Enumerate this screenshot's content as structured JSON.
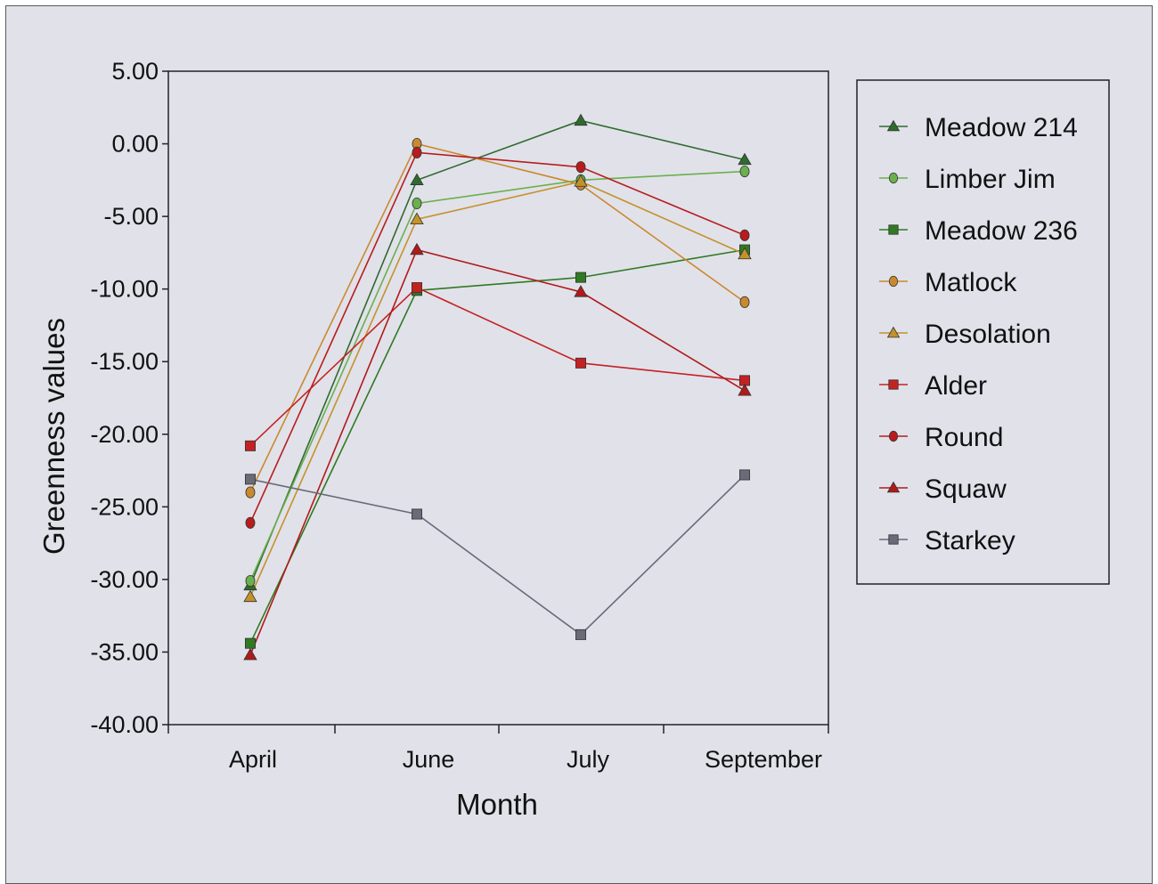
{
  "chart_data": {
    "type": "line",
    "title": "",
    "xlabel": "Month",
    "ylabel": "Greenness values",
    "categories": [
      "April",
      "June",
      "July",
      "September"
    ],
    "ylim": [
      -40,
      5
    ],
    "yticks": [
      5,
      0,
      -5,
      -10,
      -15,
      -20,
      -25,
      -30,
      -35,
      -40
    ],
    "ytick_labels": [
      "5.00",
      "0.00",
      "-5.00",
      "-10.00",
      "-15.00",
      "-20.00",
      "-25.00",
      "-30.00",
      "-35.00",
      "-40.00"
    ],
    "grid": false,
    "legend_position": "right",
    "series": [
      {
        "name": "Meadow 214",
        "color": "#2e6b2e",
        "marker": "triangle",
        "values": [
          -30.4,
          -2.5,
          1.6,
          -1.1
        ]
      },
      {
        "name": "Limber Jim",
        "color": "#6ab04c",
        "marker": "circle",
        "values": [
          -30.1,
          -4.1,
          -2.5,
          -1.9
        ]
      },
      {
        "name": "Meadow 236",
        "color": "#2f7a22",
        "marker": "square",
        "values": [
          -34.4,
          -10.1,
          -9.2,
          -7.3
        ]
      },
      {
        "name": "Matlock",
        "color": "#c98a2e",
        "marker": "circle",
        "values": [
          -24.0,
          0.0,
          -2.8,
          -10.9
        ]
      },
      {
        "name": "Desolation",
        "color": "#c4922a",
        "marker": "triangle",
        "values": [
          -31.2,
          -5.2,
          -2.6,
          -7.6
        ]
      },
      {
        "name": "Alder",
        "color": "#c42222",
        "marker": "square",
        "values": [
          -20.8,
          -9.9,
          -15.1,
          -16.3
        ]
      },
      {
        "name": "Round",
        "color": "#b81c1c",
        "marker": "circle",
        "values": [
          -26.1,
          -0.6,
          -1.6,
          -6.3
        ]
      },
      {
        "name": "Squaw",
        "color": "#b01a1a",
        "marker": "triangle",
        "values": [
          -35.2,
          -7.3,
          -10.2,
          -17.0
        ]
      },
      {
        "name": "Starkey",
        "color": "#6a6a78",
        "marker": "square",
        "values": [
          -23.1,
          -25.5,
          -33.8,
          -22.8
        ]
      }
    ]
  }
}
